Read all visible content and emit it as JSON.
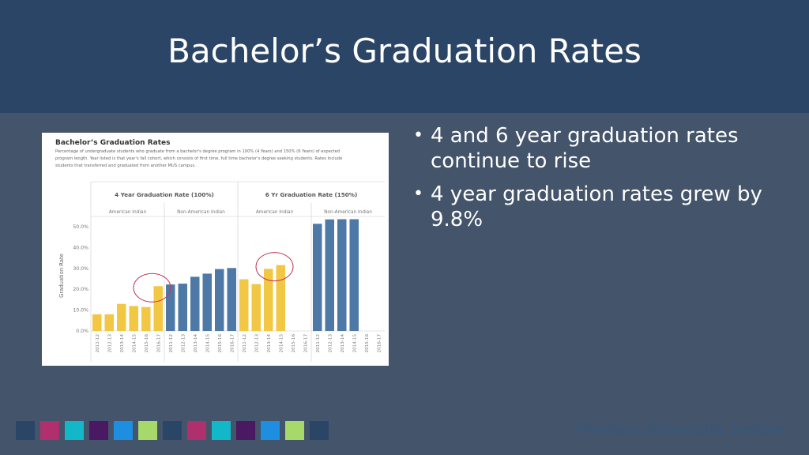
{
  "slide": {
    "title": "Bachelor’s Graduation Rates",
    "bullets": [
      "4 and 6 year graduation rates continue to rise",
      "4 year graduation rates grew by 9.8%"
    ],
    "footer": "Montana University System",
    "squares": [
      "#2B4567",
      "#B0306E",
      "#12B8C8",
      "#4A1963",
      "#1E8FE0",
      "#A6D86A",
      "#2B4567",
      "#B0306E",
      "#12B8C8",
      "#4A1963",
      "#1E8FE0",
      "#A6D86A",
      "#2B4567"
    ],
    "colors": {
      "american_indian": "#F2C744",
      "non_american_indian": "#4E79A7",
      "circle": "#C0395B"
    }
  },
  "chart_data": {
    "type": "bar",
    "title": "Bachelor’s Graduation Rates",
    "subtitle_lines": [
      "Percentage of undergraduate students who graduate from a bachelor's degree program in 100% (4 Years) and 150% (6 Years) of expected",
      "program length.  Year listed is that year's fall cohort, which consists of first time, full time bachelor's degree seeking students.  Rates include",
      "students that transferred and graduated from another MUS campus."
    ],
    "ylabel": "Graduation Rate",
    "ylim": [
      0,
      0.57
    ],
    "yticks": [
      "0.0%",
      "10.0%",
      "20.0%",
      "30.0%",
      "40.0%",
      "50.0%"
    ],
    "ytick_values": [
      0,
      0.1,
      0.2,
      0.3,
      0.4,
      0.5
    ],
    "groups": [
      "4 Year Graduation Rate (100%)",
      "6 Yr Graduation Rate (150%)"
    ],
    "subgroups": [
      "American Indian",
      "Non-American Indian"
    ],
    "categories": [
      "2011-12",
      "2012-13",
      "2013-14",
      "2014-15",
      "2015-16",
      "2016-17"
    ],
    "series": [
      {
        "group": 0,
        "subgroup": 0,
        "values": [
          0.08,
          0.08,
          0.13,
          0.12,
          0.115,
          0.215
        ]
      },
      {
        "group": 0,
        "subgroup": 1,
        "values": [
          0.223,
          0.227,
          0.26,
          0.275,
          0.297,
          0.302
        ]
      },
      {
        "group": 1,
        "subgroup": 0,
        "values": [
          0.248,
          0.225,
          0.298,
          0.316,
          null,
          null
        ]
      },
      {
        "group": 1,
        "subgroup": 1,
        "values": [
          0.514,
          0.535,
          0.536,
          0.536,
          null,
          null
        ]
      }
    ],
    "highlighted": [
      {
        "series": 0,
        "from": 4,
        "to": 5
      },
      {
        "series": 2,
        "from": 2,
        "to": 3
      }
    ],
    "grid": false
  }
}
